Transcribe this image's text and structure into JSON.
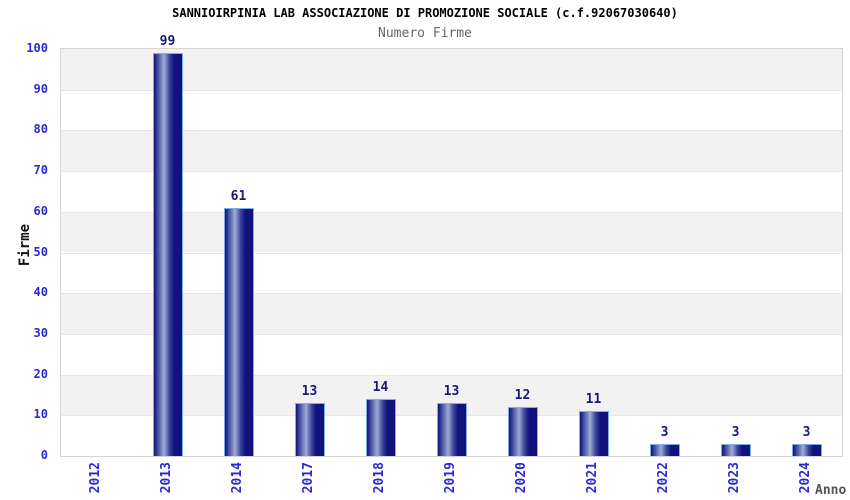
{
  "chart_data": {
    "type": "bar",
    "title": "SANNIOIRPINIA LAB ASSOCIAZIONE DI PROMOZIONE SOCIALE (c.f.92067030640)",
    "subtitle": "Numero Firme",
    "xlabel": "Anno",
    "ylabel": "Firme",
    "categories": [
      "2012",
      "2013",
      "2014",
      "2017",
      "2018",
      "2019",
      "2020",
      "2021",
      "2022",
      "2023",
      "2024"
    ],
    "values": [
      0,
      99,
      61,
      13,
      14,
      13,
      12,
      11,
      3,
      3,
      3
    ],
    "ylim": [
      0,
      100
    ],
    "ytick_step": 10,
    "grid": "horizontal-bands",
    "legend": "none",
    "colors": {
      "bar_dark": "#12127c",
      "bar_mid": "#3c489c",
      "bar_highlight": "#a0aad6",
      "bar_border": "#7ab0e8",
      "band_gray": "#f2f2f2",
      "band_white": "#ffffff",
      "gridline": "#e8e8e8",
      "tick_label": "#2a2ace",
      "value_label": "#191970",
      "title": "#000000",
      "subtitle": "#666666",
      "xlabel": "#555555",
      "ylabel": "#111111",
      "plot_border": "#d4d4d4"
    }
  }
}
